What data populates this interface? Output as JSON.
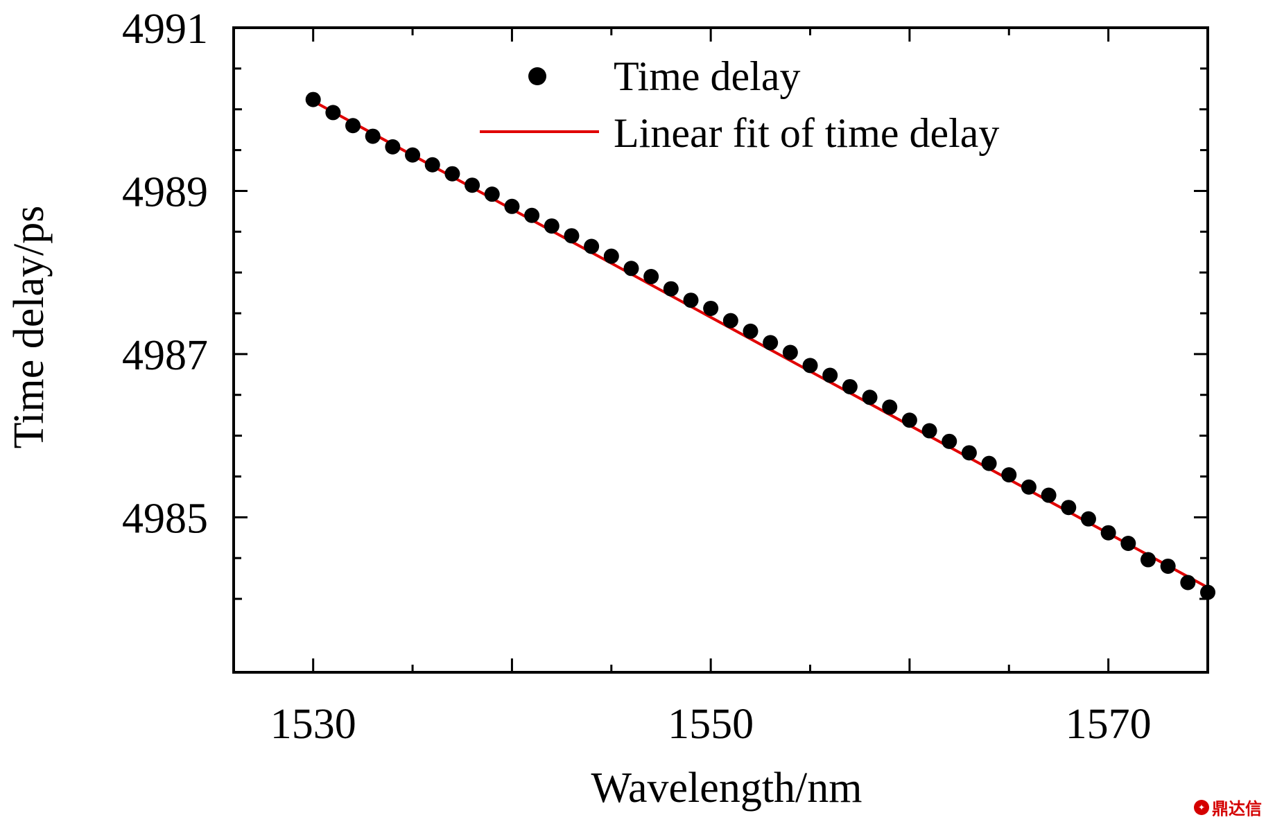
{
  "chart_data": {
    "type": "scatter",
    "xlabel": "Wavelength/nm",
    "ylabel": "Time delay/ps",
    "xlim": [
      1526,
      1575
    ],
    "ylim": [
      4983.1,
      4991
    ],
    "x_ticks": [
      1530,
      1550,
      1570
    ],
    "y_ticks": [
      4985,
      4987,
      4989,
      4991
    ],
    "grid": false,
    "legend_position": "top-center",
    "series": [
      {
        "name": "Time delay",
        "style": "markers",
        "color": "#000000",
        "x": [
          1530,
          1531,
          1532,
          1533,
          1534,
          1535,
          1536,
          1537,
          1538,
          1539,
          1540,
          1541,
          1542,
          1543,
          1544,
          1545,
          1546,
          1547,
          1548,
          1549,
          1550,
          1551,
          1552,
          1553,
          1554,
          1555,
          1556,
          1557,
          1558,
          1559,
          1560,
          1561,
          1562,
          1563,
          1564,
          1565,
          1566,
          1567,
          1568,
          1569,
          1570,
          1571,
          1572,
          1573,
          1574,
          1575
        ],
        "y": [
          4990.12,
          4989.96,
          4989.8,
          4989.67,
          4989.54,
          4989.44,
          4989.32,
          4989.21,
          4989.07,
          4988.96,
          4988.81,
          4988.7,
          4988.57,
          4988.45,
          4988.32,
          4988.2,
          4988.05,
          4987.95,
          4987.8,
          4987.66,
          4987.56,
          4987.41,
          4987.28,
          4987.14,
          4987.02,
          4986.86,
          4986.74,
          4986.6,
          4986.47,
          4986.35,
          4986.19,
          4986.06,
          4985.93,
          4985.79,
          4985.66,
          4985.52,
          4985.37,
          4985.27,
          4985.12,
          4984.98,
          4984.81,
          4984.68,
          4984.48,
          4984.4,
          4984.2,
          4984.08
        ]
      },
      {
        "name": "Linear fit of time delay",
        "style": "line",
        "color": "#e00000",
        "x": [
          1530,
          1575
        ],
        "y": [
          4990.1,
          4984.14
        ]
      }
    ]
  },
  "watermark": "鼎达信",
  "watermark_icon": "seal-icon"
}
